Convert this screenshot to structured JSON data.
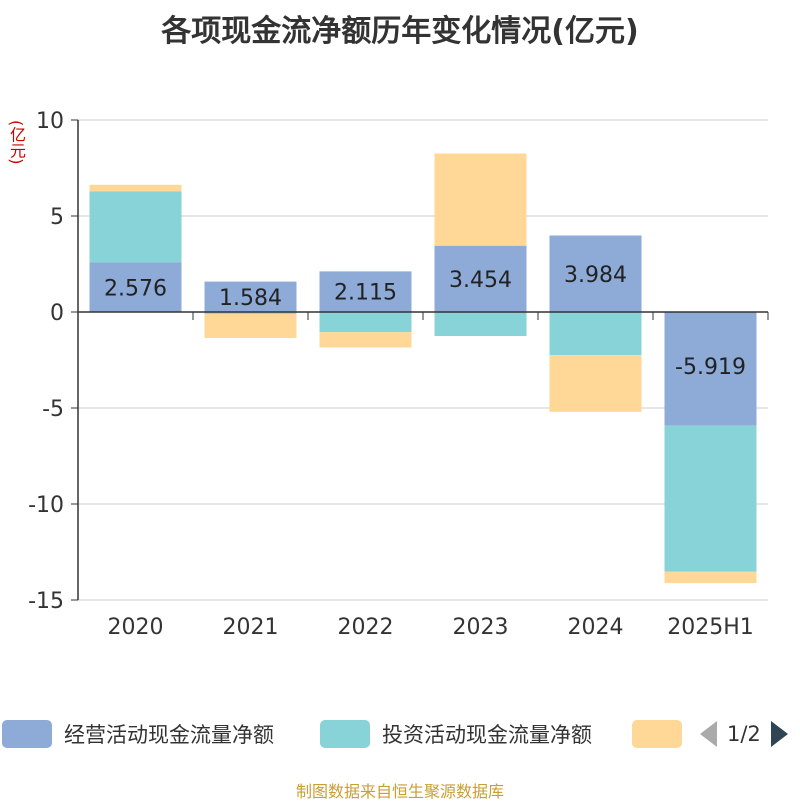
{
  "title": "各项现金流净额历年变化情况(亿元)",
  "unit": "(亿元)",
  "footer": "制图数据来自恒生聚源数据库",
  "pager": "1/2",
  "colors": {
    "operating": "#8eabd8",
    "investing": "#88d3d7",
    "financing": "#ffd797"
  },
  "chart_data": {
    "type": "bar",
    "stacked": true,
    "categories": [
      "2020",
      "2021",
      "2022",
      "2023",
      "2024",
      "2025H1"
    ],
    "series": [
      {
        "name": "经营活动现金流量净额",
        "values": [
          2.576,
          1.584,
          2.115,
          3.454,
          3.984,
          -5.919
        ],
        "labels": [
          "2.576",
          "1.584",
          "2.115",
          "3.454",
          "3.984",
          "-5.919"
        ]
      },
      {
        "name": "投资活动现金流量净额",
        "values": [
          3.7,
          -0.1,
          -1.05,
          -1.25,
          -2.25,
          -7.6
        ]
      },
      {
        "name": "",
        "values": [
          0.35,
          -1.25,
          -0.8,
          4.8,
          -2.95,
          -0.6
        ]
      }
    ],
    "ylim": [
      -15,
      10
    ],
    "yticks": [
      10,
      5,
      0,
      -5,
      -10,
      -15
    ],
    "grid": true,
    "legend": "bottom"
  }
}
